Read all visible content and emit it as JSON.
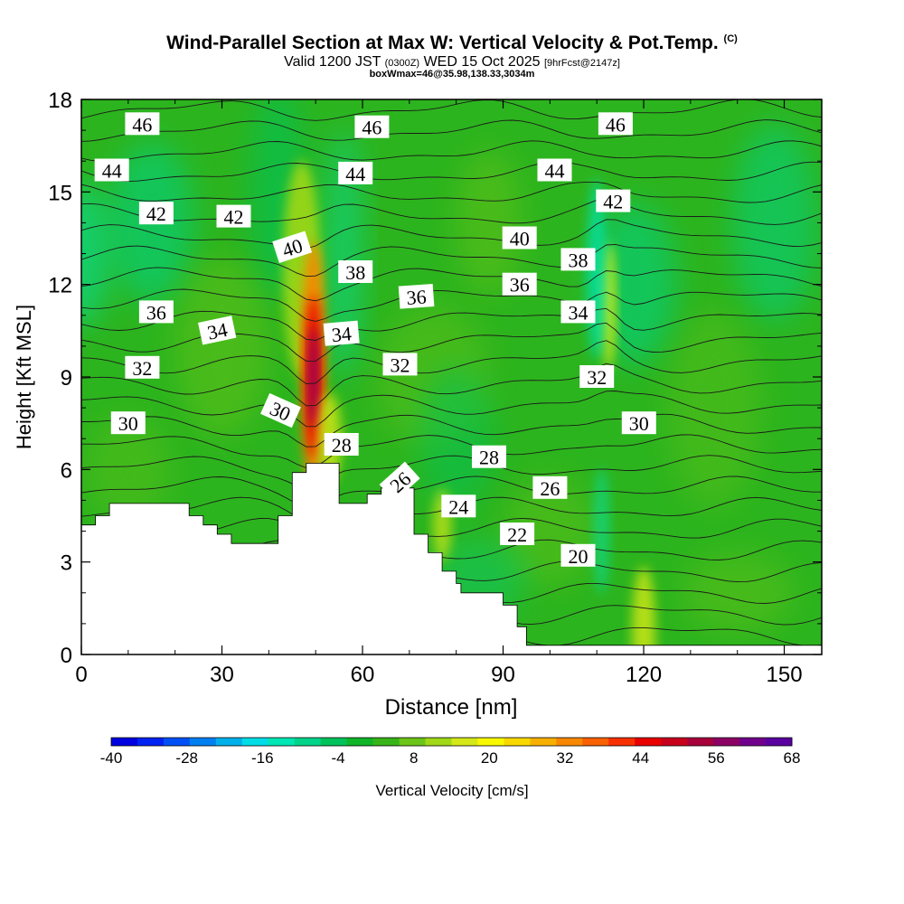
{
  "header": {
    "title": "Wind-Parallel Section at Max W: Vertical Velocity & Pot.Temp.",
    "copyright": "(C)",
    "valid_prefix": "Valid 1200 JST",
    "valid_utc": "(0300Z)",
    "valid_date": "WED 15 Oct 2025",
    "forecast_tag": "[9hrFcst@2147z]",
    "box_info": "boxWmax=46@35.98,138.33,3034m"
  },
  "chart_data": {
    "type": "heatmap",
    "title": "Wind-Parallel Section at Max W: Vertical Velocity & Pot.Temp.",
    "xlabel": "Distance [nm]",
    "ylabel": "Height [Kft MSL]",
    "xlim": [
      0,
      158
    ],
    "ylim": [
      0,
      18
    ],
    "x_ticks": [
      0,
      30,
      60,
      90,
      120,
      150
    ],
    "y_ticks": [
      0,
      3,
      6,
      9,
      12,
      15,
      18
    ],
    "colorbar": {
      "label": "Vertical Velocity [cm/s]",
      "min": -40,
      "max": 68,
      "tick_labels": [
        "-40",
        "-28",
        "-16",
        "-4",
        "8",
        "20",
        "32",
        "44",
        "56",
        "68"
      ],
      "colors": [
        "#0000e0",
        "#0022f2",
        "#0050f5",
        "#0080f0",
        "#00b0ea",
        "#00dde6",
        "#00e6b4",
        "#00d48a",
        "#00c25a",
        "#10b428",
        "#38b418",
        "#6cc418",
        "#a0d818",
        "#d4e818",
        "#f8f800",
        "#f8d800",
        "#f8b000",
        "#f88800",
        "#f86000",
        "#f83000",
        "#e80000",
        "#c8001c",
        "#a8003c",
        "#8c0064",
        "#70008c",
        "#5a00a0"
      ],
      "legend_position": "bottom"
    },
    "contours": {
      "variable": "Potential Temperature",
      "interval": 2,
      "labels": [
        {
          "text": "46",
          "x": 13,
          "y": 17.2,
          "rot": 0
        },
        {
          "text": "46",
          "x": 62,
          "y": 17.1,
          "rot": 0
        },
        {
          "text": "46",
          "x": 114,
          "y": 17.2,
          "rot": 0
        },
        {
          "text": "44",
          "x": 6.5,
          "y": 15.7,
          "rot": 0
        },
        {
          "text": "44",
          "x": 58.5,
          "y": 15.6,
          "rot": 0
        },
        {
          "text": "44",
          "x": 101,
          "y": 15.7,
          "rot": 0
        },
        {
          "text": "42",
          "x": 16,
          "y": 14.3,
          "rot": 0
        },
        {
          "text": "42",
          "x": 32.5,
          "y": 14.2,
          "rot": 0
        },
        {
          "text": "42",
          "x": 113.5,
          "y": 14.7,
          "rot": 0
        },
        {
          "text": "40",
          "x": 45,
          "y": 13.2,
          "rot": -18
        },
        {
          "text": "40",
          "x": 93.5,
          "y": 13.5,
          "rot": 0
        },
        {
          "text": "38",
          "x": 58.5,
          "y": 12.4,
          "rot": 0
        },
        {
          "text": "38",
          "x": 106,
          "y": 12.8,
          "rot": 0
        },
        {
          "text": "36",
          "x": 16,
          "y": 11.1,
          "rot": 0
        },
        {
          "text": "36",
          "x": 71.5,
          "y": 11.6,
          "rot": -4
        },
        {
          "text": "36",
          "x": 93.5,
          "y": 12.0,
          "rot": 0
        },
        {
          "text": "34",
          "x": 29,
          "y": 10.5,
          "rot": -12
        },
        {
          "text": "34",
          "x": 55.5,
          "y": 10.4,
          "rot": -5
        },
        {
          "text": "34",
          "x": 106,
          "y": 11.1,
          "rot": 0
        },
        {
          "text": "32",
          "x": 13,
          "y": 9.3,
          "rot": 0
        },
        {
          "text": "32",
          "x": 68,
          "y": 9.4,
          "rot": 0
        },
        {
          "text": "32",
          "x": 110,
          "y": 9.0,
          "rot": 0
        },
        {
          "text": "30",
          "x": 10,
          "y": 7.5,
          "rot": 0
        },
        {
          "text": "30",
          "x": 42.5,
          "y": 7.9,
          "rot": 24
        },
        {
          "text": "30",
          "x": 119,
          "y": 7.5,
          "rot": 0
        },
        {
          "text": "28",
          "x": 55.5,
          "y": 6.8,
          "rot": 0
        },
        {
          "text": "28",
          "x": 87,
          "y": 6.4,
          "rot": 0
        },
        {
          "text": "26",
          "x": 68,
          "y": 5.6,
          "rot": -42
        },
        {
          "text": "26",
          "x": 100,
          "y": 5.4,
          "rot": 0
        },
        {
          "text": "24",
          "x": 80.5,
          "y": 4.8,
          "rot": 0
        },
        {
          "text": "22",
          "x": 93,
          "y": 3.9,
          "rot": 0
        },
        {
          "text": "20",
          "x": 106,
          "y": 3.2,
          "rot": 0
        }
      ]
    },
    "terrain_profile": [
      [
        0,
        4.2
      ],
      [
        3,
        4.2
      ],
      [
        3,
        4.5
      ],
      [
        6,
        4.5
      ],
      [
        6,
        4.9
      ],
      [
        23,
        4.9
      ],
      [
        23,
        4.5
      ],
      [
        26,
        4.5
      ],
      [
        26,
        4.2
      ],
      [
        29,
        4.2
      ],
      [
        29,
        3.9
      ],
      [
        32,
        3.9
      ],
      [
        32,
        3.6
      ],
      [
        42,
        3.6
      ],
      [
        42,
        4.5
      ],
      [
        45,
        4.5
      ],
      [
        45,
        5.9
      ],
      [
        48,
        5.9
      ],
      [
        48,
        6.2
      ],
      [
        55,
        6.2
      ],
      [
        55,
        4.9
      ],
      [
        61,
        4.9
      ],
      [
        61,
        5.2
      ],
      [
        64,
        5.2
      ],
      [
        64,
        5.4
      ],
      [
        71,
        5.4
      ],
      [
        71,
        3.9
      ],
      [
        74,
        3.9
      ],
      [
        74,
        3.3
      ],
      [
        77,
        3.3
      ],
      [
        77,
        2.7
      ],
      [
        80,
        2.7
      ],
      [
        80,
        2.3
      ],
      [
        81,
        2.3
      ],
      [
        81,
        2.0
      ],
      [
        90,
        2.0
      ],
      [
        90,
        1.6
      ],
      [
        93,
        1.6
      ],
      [
        93,
        0.9
      ],
      [
        95,
        0.9
      ],
      [
        95,
        0.3
      ],
      [
        158,
        0.3
      ],
      [
        158,
        0
      ],
      [
        0,
        0
      ]
    ]
  }
}
